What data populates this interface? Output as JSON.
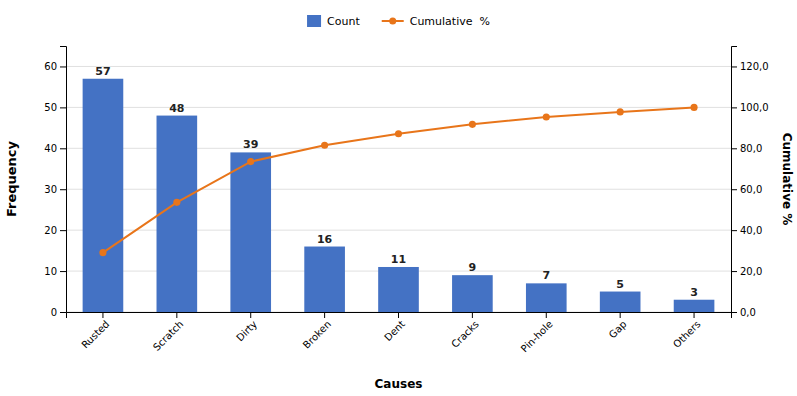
{
  "chart_data": {
    "type": "bar",
    "xlabel": "Causes",
    "ylabel": "Frequency",
    "y2label": "Cumulative %",
    "categories": [
      "Rusted",
      "Scratch",
      "Dirty",
      "Broken",
      "Dent",
      "Cracks",
      "Pin-hole",
      "Gap",
      "Others"
    ],
    "series": [
      {
        "name": "Count",
        "type": "bar",
        "color": "#4472C4",
        "data_labels": true,
        "values": [
          57,
          48,
          39,
          16,
          11,
          9,
          7,
          5,
          3
        ]
      },
      {
        "name": "Cumulative  %",
        "type": "line",
        "color": "#E8751A",
        "marker": "o",
        "axis": "y2",
        "values": [
          29.0,
          53.6,
          73.5,
          81.5,
          87.1,
          91.7,
          95.3,
          97.8,
          100.0
        ]
      }
    ],
    "ylim": [
      0,
      65
    ],
    "yticks": [
      0,
      10,
      20,
      30,
      40,
      50,
      60
    ],
    "y2lim": [
      0,
      130
    ],
    "y2ticks": [
      {
        "value": 0.0,
        "label": "0,0"
      },
      {
        "value": 20.0,
        "label": "20,0"
      },
      {
        "value": 40.0,
        "label": "40,0"
      },
      {
        "value": 60.0,
        "label": "60,0"
      },
      {
        "value": 80.0,
        "label": "80,0"
      },
      {
        "value": 100.0,
        "label": "100,0"
      },
      {
        "value": 120.0,
        "label": "120,0"
      }
    ],
    "grid": true,
    "legend": "top"
  }
}
